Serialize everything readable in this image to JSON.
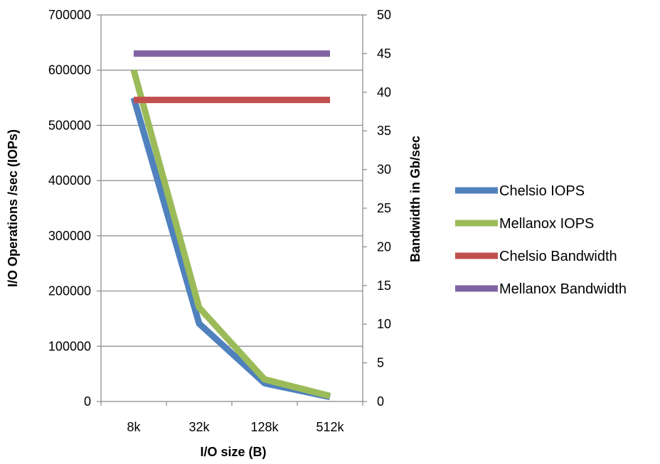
{
  "chart_data": {
    "type": "line",
    "categories": [
      "8k",
      "32k",
      "128k",
      "512k"
    ],
    "xlabel": "I/O size (B)",
    "ylabel": "I/O Operations /sec (IOPs)",
    "y2label": "Bandwidth in Gb/sec",
    "ylim": [
      0,
      700000
    ],
    "y2lim": [
      0,
      50
    ],
    "yticks": [
      "0",
      "100000",
      "200000",
      "300000",
      "400000",
      "500000",
      "600000",
      "700000"
    ],
    "y2ticks": [
      "0",
      "5",
      "10",
      "15",
      "20",
      "25",
      "30",
      "35",
      "40",
      "45",
      "50"
    ],
    "grid": true,
    "legend_position": "right",
    "series": [
      {
        "name": "Chelsio IOPS",
        "axis": "left",
        "color": "#4F81BD",
        "values": [
          550000,
          141000,
          33000,
          8000
        ]
      },
      {
        "name": "Mellanox IOPS",
        "axis": "left",
        "color": "#9BBB59",
        "values": [
          600000,
          170000,
          40000,
          10000
        ]
      },
      {
        "name": "Chelsio Bandwidth",
        "axis": "right",
        "color": "#C0504D",
        "values": [
          39,
          39,
          39,
          39
        ]
      },
      {
        "name": "Mellanox Bandwidth",
        "axis": "right",
        "color": "#8064A2",
        "values": [
          45,
          45,
          45,
          45
        ]
      }
    ]
  }
}
